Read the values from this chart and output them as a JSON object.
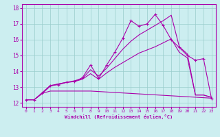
{
  "xlabel": "Windchill (Refroidissement éolien,°C)",
  "background_color": "#cceef0",
  "line_color": "#aa00aa",
  "grid_color": "#99cccc",
  "ylim": [
    11.75,
    18.25
  ],
  "xlim": [
    -0.5,
    23.5
  ],
  "yticks": [
    12,
    13,
    14,
    15,
    16,
    17,
    18
  ],
  "xticks": [
    0,
    1,
    2,
    3,
    4,
    5,
    6,
    7,
    8,
    9,
    10,
    11,
    12,
    13,
    14,
    15,
    16,
    17,
    18,
    19,
    20,
    21,
    22,
    23
  ],
  "line1_x": [
    0,
    1,
    2,
    3,
    4,
    5,
    6,
    7,
    8,
    9,
    10,
    11,
    12,
    13,
    14,
    15,
    16,
    17,
    18,
    19,
    20,
    21,
    22,
    23
  ],
  "line1_y": [
    12.2,
    12.2,
    12.6,
    13.1,
    13.15,
    13.3,
    13.35,
    13.6,
    14.4,
    13.55,
    14.4,
    15.2,
    16.1,
    17.2,
    16.85,
    17.0,
    17.6,
    16.9,
    16.0,
    15.5,
    15.0,
    14.7,
    14.8,
    12.25
  ],
  "line2_x": [
    0,
    1,
    3,
    4,
    5,
    6,
    7,
    8,
    9,
    10,
    11,
    12,
    13,
    14,
    15,
    16,
    17,
    18,
    19,
    20,
    21,
    22,
    23
  ],
  "line2_y": [
    12.2,
    12.2,
    13.1,
    13.2,
    13.3,
    13.4,
    13.55,
    14.1,
    13.7,
    14.2,
    14.8,
    15.4,
    15.9,
    16.3,
    16.6,
    16.9,
    17.2,
    17.55,
    15.55,
    15.1,
    12.5,
    12.5,
    12.35
  ],
  "line3_x": [
    0,
    1,
    2,
    3,
    4,
    5,
    6,
    7,
    8,
    9,
    10,
    11,
    12,
    13,
    14,
    15,
    16,
    17,
    18,
    19,
    20,
    21,
    22,
    23
  ],
  "line3_y": [
    12.2,
    12.2,
    12.6,
    13.05,
    13.2,
    13.3,
    13.35,
    13.5,
    13.85,
    13.5,
    13.9,
    14.25,
    14.55,
    14.85,
    15.15,
    15.35,
    15.55,
    15.8,
    16.05,
    15.2,
    14.85,
    12.5,
    12.5,
    12.35
  ],
  "line4_x": [
    0,
    1,
    2,
    3,
    4,
    5,
    6,
    7,
    8,
    23
  ],
  "line4_y": [
    12.2,
    12.2,
    12.6,
    12.75,
    12.75,
    12.75,
    12.75,
    12.75,
    12.75,
    12.3
  ]
}
